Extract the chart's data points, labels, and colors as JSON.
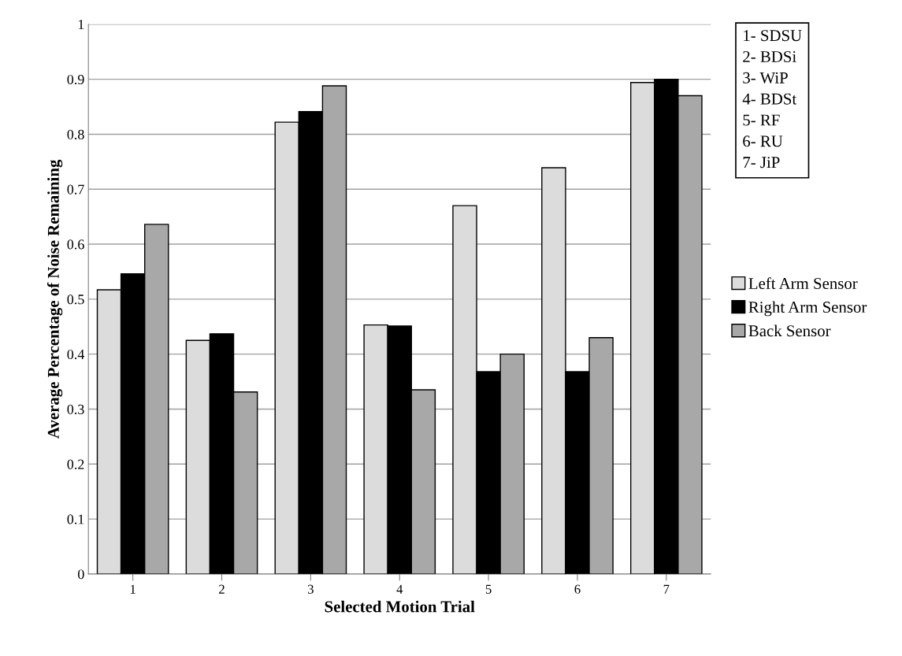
{
  "chart_data": {
    "type": "bar",
    "xlabel": "Selected Motion Trial",
    "ylabel": "Average Percentage of Noise Remaining",
    "categories": [
      "1",
      "2",
      "3",
      "4",
      "5",
      "6",
      "7"
    ],
    "series": [
      {
        "name": "Left Arm Sensor",
        "color": "#dcdcdc",
        "values": [
          0.517,
          0.425,
          0.822,
          0.453,
          0.67,
          0.739,
          0.894
        ]
      },
      {
        "name": "Right Arm Sensor",
        "color": "#000000",
        "values": [
          0.546,
          0.437,
          0.841,
          0.451,
          0.368,
          0.368,
          0.9
        ]
      },
      {
        "name": "Back Sensor",
        "color": "#a8a8a8",
        "values": [
          0.636,
          0.331,
          0.888,
          0.335,
          0.4,
          0.43,
          0.87
        ]
      }
    ],
    "ylim": [
      0,
      1
    ],
    "yticks": [
      0,
      0.1,
      0.2,
      0.3,
      0.4,
      0.5,
      0.6,
      0.7,
      0.8,
      0.9,
      1
    ],
    "grid": "y",
    "legend": "right",
    "annotations": [
      "1- SDSU",
      "2- BDSi",
      "3- WiP",
      "4- BDSt",
      "5- RF",
      "6- RU",
      "7- JiP"
    ]
  }
}
